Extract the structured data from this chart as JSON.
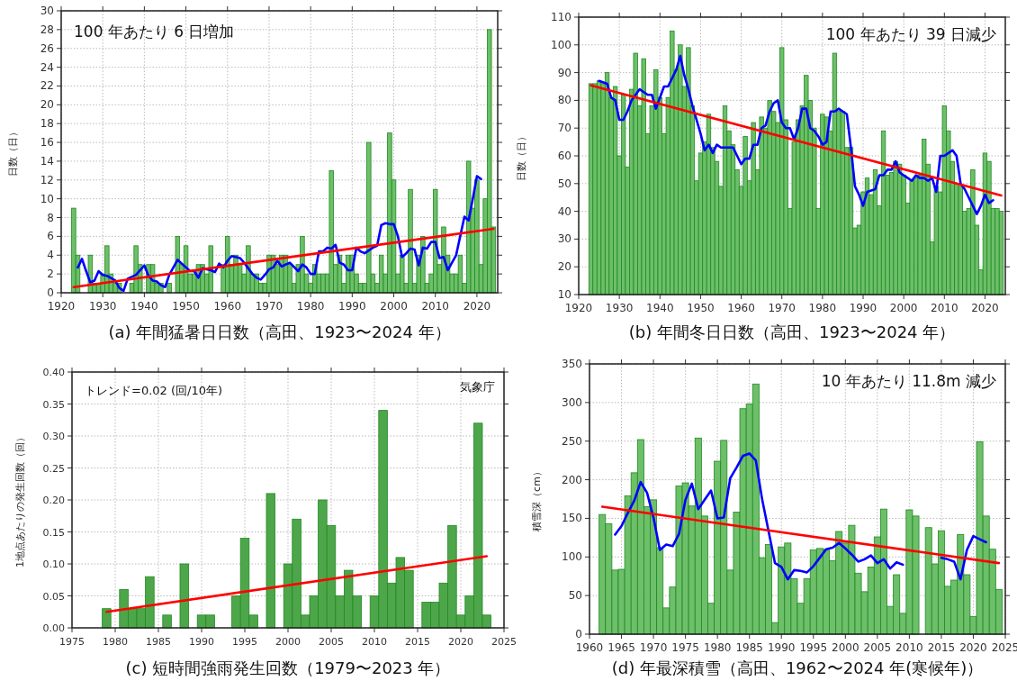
{
  "chart_data": [
    {
      "type": "bar",
      "title": "(a)  年間猛暑日日数（高田、1923〜2024 年）",
      "ylabel": "日数（日）",
      "annotations": [
        "100 年あたり 6 日増加"
      ],
      "xlim": [
        1920,
        2025
      ],
      "xticks": [
        1920,
        1930,
        1940,
        1950,
        1960,
        1970,
        1980,
        1990,
        2000,
        2010,
        2020
      ],
      "ylim": [
        0,
        30
      ],
      "yticks": [
        0,
        2,
        4,
        6,
        8,
        10,
        12,
        14,
        16,
        18,
        20,
        22,
        24,
        26,
        28,
        30
      ],
      "grid": true,
      "series": [
        {
          "color": "#6dbf6a",
          "x": [
            1923,
            1924,
            1925,
            1926,
            1927,
            1928,
            1929,
            1930,
            1931,
            1932,
            1933,
            1934,
            1935,
            1936,
            1937,
            1938,
            1939,
            1940,
            1941,
            1942,
            1943,
            1944,
            1945,
            1946,
            1947,
            1948,
            1949,
            1950,
            1951,
            1952,
            1953,
            1954,
            1955,
            1956,
            1957,
            1958,
            1959,
            1960,
            1961,
            1962,
            1963,
            1964,
            1965,
            1966,
            1967,
            1968,
            1969,
            1970,
            1971,
            1972,
            1973,
            1974,
            1975,
            1976,
            1977,
            1978,
            1979,
            1980,
            1981,
            1982,
            1983,
            1984,
            1985,
            1986,
            1987,
            1988,
            1989,
            1990,
            1991,
            1992,
            1993,
            1994,
            1995,
            1996,
            1997,
            1998,
            1999,
            2000,
            2001,
            2002,
            2003,
            2004,
            2005,
            2006,
            2007,
            2008,
            2009,
            2010,
            2011,
            2012,
            2013,
            2014,
            2015,
            2016,
            2017,
            2018,
            2019,
            2020,
            2021,
            2022,
            2023,
            2024
          ],
          "values": [
            9,
            4,
            0,
            0,
            4,
            1,
            1,
            2,
            5,
            2,
            1,
            1,
            0,
            0,
            1,
            5,
            3,
            0,
            3,
            3,
            1,
            1,
            0,
            1,
            0,
            6,
            3,
            5,
            2,
            2,
            3,
            3,
            2,
            5,
            0,
            0,
            3,
            6,
            3,
            4,
            3,
            2,
            5,
            2,
            2,
            1,
            1,
            4,
            4,
            3,
            4,
            4,
            3,
            1,
            3,
            6,
            2,
            1,
            3,
            2,
            2,
            2,
            13,
            3,
            4,
            1,
            4,
            4,
            2,
            1,
            1,
            16,
            2,
            1,
            4,
            2,
            17,
            12,
            2,
            4,
            1,
            11,
            1,
            4,
            6,
            1,
            2,
            11,
            3,
            7,
            4,
            2,
            2,
            4,
            1,
            14,
            9,
            12,
            3,
            10,
            28,
            7
          ]
        },
        {
          "type": "line",
          "color": "#0000ff",
          "x": [
            1924,
            1925,
            1926,
            1927,
            1928,
            1929,
            1930,
            1931,
            1933,
            1934,
            1935,
            1936,
            1938,
            1939,
            1940,
            1941,
            1942,
            1943,
            1944,
            1945,
            1946,
            1948,
            1949,
            1951,
            1952,
            1953,
            1954,
            1956,
            1957,
            1958,
            1959,
            1960,
            1961,
            1963,
            1964,
            1965,
            1966,
            1967,
            1968,
            1969,
            1970,
            1971,
            1972,
            1973,
            1975,
            1977,
            1978,
            1979,
            1980,
            1981,
            1982,
            1983,
            1984,
            1985,
            1986,
            1987,
            1988,
            1989,
            1990,
            1991,
            1992,
            1993,
            1995,
            1996,
            1997,
            1998,
            1999,
            2000,
            2001,
            2002,
            2003,
            2004,
            2005,
            2006,
            2007,
            2008,
            2009,
            2010,
            2011,
            2012,
            2013,
            2015,
            2017,
            2018,
            2019,
            2020,
            2021
          ],
          "values": [
            2.7,
            3.6,
            2.3,
            1.1,
            1.3,
            2.3,
            1.9,
            1.8,
            1.3,
            0.5,
            0.2,
            1.5,
            1.9,
            2.4,
            2.9,
            1.8,
            1.3,
            1.2,
            0.8,
            0.6,
            1.9,
            3.5,
            3.1,
            2.3,
            2.3,
            1.6,
            2.6,
            2.4,
            2.2,
            3.1,
            2.7,
            3.4,
            3.9,
            3.7,
            3.2,
            2.6,
            2.0,
            1.6,
            1.4,
            1.9,
            2.5,
            2.7,
            3.4,
            2.8,
            3.2,
            2.3,
            3.0,
            2.7,
            2.0,
            2.0,
            4.4,
            4.4,
            4.8,
            4.7,
            5.1,
            3.2,
            3.0,
            2.4,
            2.4,
            4.8,
            4.4,
            4.2,
            4.8,
            5.0,
            7.2,
            7.4,
            7.3,
            7.3,
            6.0,
            3.8,
            4.2,
            4.7,
            4.6,
            2.9,
            4.8,
            4.7,
            5.4,
            5.4,
            3.7,
            3.8,
            2.4,
            4.0,
            8.1,
            7.7,
            10.0,
            12.4,
            12.1
          ]
        },
        {
          "type": "line",
          "color": "#ff0000",
          "x": [
            1923,
            2024
          ],
          "values": [
            0.6,
            6.8
          ]
        }
      ]
    },
    {
      "type": "bar",
      "title": "(b)  年間冬日日数（高田、1923〜2024 年）",
      "ylabel": "日数（日）",
      "annotations": [
        "100 年あたり 39 日減少"
      ],
      "xlim": [
        1920,
        2025
      ],
      "xticks": [
        1920,
        1930,
        1940,
        1950,
        1960,
        1970,
        1980,
        1990,
        2000,
        2010,
        2020
      ],
      "ylim": [
        10,
        110
      ],
      "yticks": [
        10,
        20,
        30,
        40,
        50,
        60,
        70,
        80,
        90,
        100,
        110
      ],
      "grid": true,
      "series": [
        {
          "color": "#6dbf6a",
          "x": [
            1923,
            1924,
            1925,
            1926,
            1927,
            1928,
            1929,
            1930,
            1931,
            1932,
            1933,
            1934,
            1935,
            1936,
            1937,
            1938,
            1939,
            1940,
            1941,
            1942,
            1943,
            1944,
            1945,
            1946,
            1947,
            1948,
            1949,
            1950,
            1951,
            1952,
            1953,
            1954,
            1955,
            1956,
            1957,
            1958,
            1959,
            1960,
            1961,
            1962,
            1963,
            1964,
            1965,
            1966,
            1967,
            1968,
            1969,
            1970,
            1971,
            1972,
            1973,
            1974,
            1975,
            1976,
            1977,
            1978,
            1979,
            1980,
            1981,
            1982,
            1983,
            1984,
            1985,
            1986,
            1987,
            1988,
            1989,
            1990,
            1991,
            1992,
            1993,
            1994,
            1995,
            1996,
            1997,
            1998,
            1999,
            2000,
            2001,
            2002,
            2003,
            2004,
            2005,
            2006,
            2007,
            2008,
            2009,
            2010,
            2011,
            2012,
            2013,
            2014,
            2015,
            2016,
            2017,
            2018,
            2019,
            2020,
            2021,
            2022,
            2023,
            2024
          ],
          "values": [
            86,
            86,
            87,
            86,
            90,
            81,
            85,
            60,
            82,
            56,
            84,
            97,
            78,
            95,
            68,
            78,
            91,
            81,
            68,
            81,
            105,
            91,
            100,
            85,
            99,
            78,
            51,
            61,
            65,
            75,
            63,
            58,
            49,
            78,
            69,
            64,
            55,
            49,
            67,
            51,
            72,
            55,
            74,
            70,
            80,
            76,
            72,
            99,
            73,
            41,
            65,
            73,
            78,
            89,
            80,
            70,
            41,
            75,
            74,
            69,
            97,
            76,
            76,
            63,
            63,
            34,
            35,
            47,
            52,
            46,
            55,
            42,
            69,
            53,
            54,
            58,
            57,
            53,
            43,
            51,
            52,
            53,
            66,
            57,
            29,
            49,
            47,
            78,
            69,
            58,
            50,
            49,
            40,
            41,
            55,
            35,
            19,
            61,
            58,
            41,
            41,
            40
          ]
        },
        {
          "type": "line",
          "color": "#0000ff",
          "x": [
            1925,
            1927,
            1928,
            1929,
            1930,
            1931,
            1932,
            1933,
            1935,
            1937,
            1938,
            1939,
            1940,
            1941,
            1942,
            1943,
            1944,
            1945,
            1946,
            1947,
            1948,
            1949,
            1950,
            1951,
            1952,
            1953,
            1954,
            1955,
            1956,
            1957,
            1958,
            1959,
            1960,
            1961,
            1962,
            1963,
            1964,
            1965,
            1966,
            1967,
            1968,
            1969,
            1970,
            1971,
            1972,
            1973,
            1974,
            1975,
            1976,
            1977,
            1978,
            1979,
            1980,
            1981,
            1982,
            1983,
            1984,
            1985,
            1986,
            1987,
            1988,
            1989,
            1990,
            1991,
            1993,
            1994,
            1995,
            1996,
            1997,
            1998,
            1999,
            2000,
            2001,
            2002,
            2003,
            2004,
            2005,
            2006,
            2007,
            2008,
            2009,
            2010,
            2012,
            2013,
            2014,
            2015,
            2016,
            2018,
            2019,
            2020,
            2021,
            2022
          ],
          "values": [
            87,
            86,
            81,
            80,
            73,
            73,
            76,
            80,
            84,
            82,
            82,
            77,
            81,
            85,
            85,
            88,
            91,
            96,
            89,
            84,
            78,
            73,
            68,
            62,
            64,
            61,
            64,
            63,
            63,
            63,
            63,
            60,
            57,
            59,
            59,
            64,
            64,
            70,
            71,
            76,
            79,
            80,
            72,
            70,
            70,
            66,
            70,
            77,
            77,
            70,
            69,
            67,
            64,
            65,
            76,
            76,
            77,
            76,
            75,
            63,
            49,
            46,
            42,
            47,
            48,
            53,
            53,
            55,
            55,
            58,
            54,
            53,
            52,
            51,
            53,
            52,
            52,
            51,
            52,
            47,
            60,
            60,
            62,
            60,
            50,
            48,
            45,
            39,
            42,
            46,
            43,
            44
          ]
        },
        {
          "type": "line",
          "color": "#ff0000",
          "x": [
            1923,
            2024
          ],
          "values": [
            85.4,
            45.7
          ]
        }
      ]
    },
    {
      "type": "bar",
      "title": "(c)  短時間強雨発生回数（1979〜2023 年）",
      "ylabel": "1地点あたりの発生回数（回）",
      "annotations": [
        "トレンド=0.02 (回/10年)",
        "気象庁"
      ],
      "xlim": [
        1975,
        2025
      ],
      "xticks": [
        1975,
        1980,
        1985,
        1990,
        1995,
        2000,
        2005,
        2010,
        2015,
        2020,
        2025
      ],
      "ylim": [
        0,
        0.4
      ],
      "yticks": [
        {
          "value": 0,
          "label": "0.00"
        },
        0.05,
        {
          "value": 0.1,
          "label": "0.10"
        },
        0.15,
        {
          "value": 0.2,
          "label": "0.20"
        },
        0.25,
        {
          "value": 0.3,
          "label": "0.30"
        },
        0.35,
        {
          "value": 0.4,
          "label": "0.40"
        }
      ],
      "grid": true,
      "series": [
        {
          "color": "#4ea64a",
          "x": [
            1979,
            1980,
            1981,
            1982,
            1983,
            1984,
            1985,
            1986,
            1987,
            1988,
            1989,
            1990,
            1991,
            1992,
            1993,
            1994,
            1995,
            1996,
            1997,
            1998,
            1999,
            2000,
            2001,
            2002,
            2003,
            2004,
            2005,
            2006,
            2007,
            2008,
            2009,
            2010,
            2011,
            2012,
            2013,
            2014,
            2015,
            2016,
            2017,
            2018,
            2019,
            2020,
            2021,
            2022,
            2023
          ],
          "values": [
            0.03,
            0,
            0.06,
            0.03,
            0.03,
            0.08,
            0,
            0.02,
            0,
            0.1,
            0,
            0.02,
            0.02,
            0,
            0,
            0.05,
            0.14,
            0.02,
            0,
            0.21,
            0,
            0.1,
            0.17,
            0.02,
            0.05,
            0.2,
            0.16,
            0.05,
            0.09,
            0.05,
            0,
            0.05,
            0.34,
            0.07,
            0.11,
            0.09,
            0,
            0.04,
            0.04,
            0.07,
            0.16,
            0.02,
            0.05,
            0.32,
            0.02
          ]
        },
        {
          "type": "line",
          "color": "#ff0000",
          "x": [
            1979,
            2023
          ],
          "values": [
            0.025,
            0.112
          ]
        }
      ]
    },
    {
      "type": "bar",
      "title": "(d)  年最深積雪（高田、1962〜2024 年(寒候年)）",
      "ylabel": "積雪深（cm）",
      "annotations": [
        "10 年あたり 11.8m 減少"
      ],
      "xlim": [
        1960,
        2025
      ],
      "xticks": [
        1960,
        1965,
        1970,
        1975,
        1980,
        1985,
        1990,
        1995,
        2000,
        2005,
        2010,
        2015,
        2020,
        2025
      ],
      "ylim": [
        0,
        350
      ],
      "yticks": [
        0,
        50,
        100,
        150,
        200,
        250,
        300,
        350
      ],
      "grid": true,
      "series": [
        {
          "color": "#6dbf6a",
          "x": [
            1962,
            1963,
            1964,
            1965,
            1966,
            1967,
            1968,
            1969,
            1970,
            1971,
            1972,
            1973,
            1974,
            1975,
            1976,
            1977,
            1978,
            1979,
            1980,
            1981,
            1982,
            1983,
            1984,
            1985,
            1986,
            1987,
            1988,
            1989,
            1990,
            1991,
            1992,
            1993,
            1994,
            1995,
            1996,
            1997,
            1998,
            1999,
            2000,
            2001,
            2002,
            2003,
            2004,
            2005,
            2006,
            2007,
            2008,
            2009,
            2010,
            2011,
            2013,
            2014,
            2015,
            2016,
            2017,
            2018,
            2019,
            2020,
            2021,
            2022,
            2023,
            2024
          ],
          "values": [
            155,
            143,
            83,
            84,
            179,
            209,
            252,
            165,
            174,
            112,
            34,
            61,
            192,
            196,
            166,
            254,
            153,
            40,
            224,
            251,
            83,
            158,
            292,
            298,
            324,
            99,
            116,
            15,
            113,
            118,
            72,
            40,
            72,
            109,
            111,
            110,
            95,
            133,
            118,
            141,
            79,
            55,
            87,
            126,
            162,
            36,
            77,
            27,
            161,
            153,
            138,
            91,
            134,
            62,
            70,
            129,
            77,
            23,
            249,
            153,
            110,
            58
          ]
        },
        {
          "type": "line",
          "color": "#0000ff",
          "x": [
            1964,
            1965,
            1966,
            1967,
            1968,
            1969,
            1970,
            1971,
            1972,
            1973,
            1974,
            1975,
            1976,
            1977,
            1978,
            1979,
            1980,
            1981,
            1982,
            1983,
            1984,
            1985,
            1986,
            1987,
            1988,
            1989,
            1990,
            1991,
            1992,
            1993,
            1994,
            1995,
            1996,
            1997,
            1998,
            1999,
            2000,
            2001,
            2002,
            2003,
            2004,
            2005,
            2006,
            2007,
            2008,
            2009
          ],
          "values": [
            129,
            140,
            157,
            173,
            197,
            183,
            151,
            109,
            116,
            114,
            130,
            174,
            195,
            162,
            174,
            186,
            150,
            151,
            202,
            216,
            231,
            234,
            225,
            174,
            133,
            92,
            87,
            71,
            83,
            82,
            80,
            88,
            99,
            110,
            112,
            118,
            111,
            103,
            94,
            97,
            102,
            92,
            97,
            85,
            93,
            90
          ]
        },
        {
          "type": "line",
          "color": "#0000ff",
          "x": [
            2015,
            2016,
            2017,
            2018,
            2019,
            2020,
            2021,
            2022
          ],
          "values": [
            99,
            97,
            94,
            71,
            109,
            127,
            123,
            119
          ]
        },
        {
          "type": "line",
          "color": "#ff0000",
          "x": [
            1962,
            2024
          ],
          "values": [
            165,
            92
          ]
        }
      ]
    }
  ]
}
